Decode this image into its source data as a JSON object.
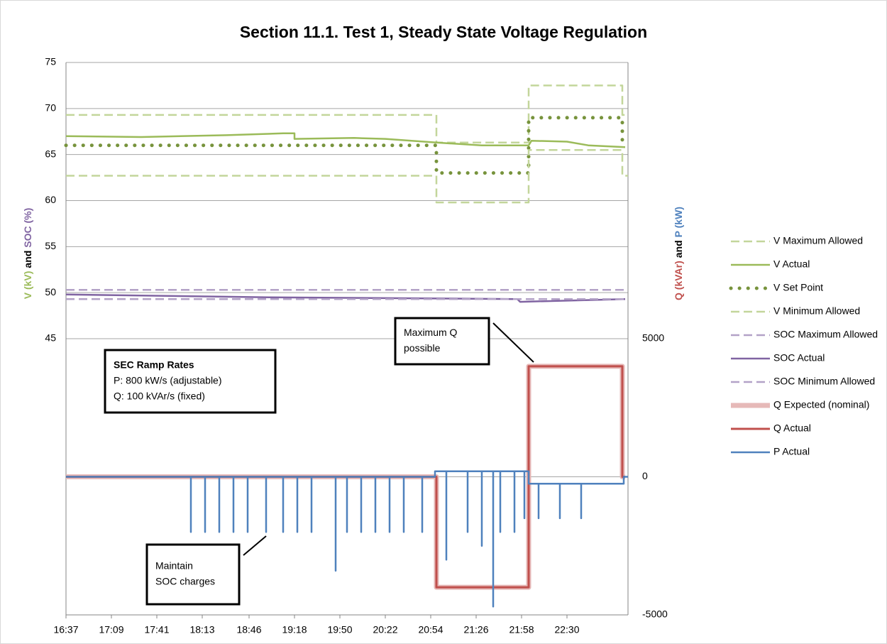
{
  "chart_data": {
    "type": "line",
    "title": "Section 11.1. Test 1, Steady State Voltage Regulation",
    "y_label_parts": [
      {
        "text": "V (kV)",
        "color": "#9bbb59"
      },
      {
        "text": "and",
        "color": "#000000"
      },
      {
        "text": "SOC (%)",
        "color": "#8064a2"
      }
    ],
    "y2_label_parts": [
      {
        "text": "Q (kVAr)",
        "color": "#c0504d"
      },
      {
        "text": "and",
        "color": "#000000"
      },
      {
        "text": "P (kW)",
        "color": "#4f81bd"
      }
    ],
    "xlim": [
      "16:37",
      "23:13"
    ],
    "xticks": [
      "16:37",
      "17:09",
      "17:41",
      "18:13",
      "18:46",
      "19:18",
      "19:50",
      "20:22",
      "20:54",
      "21:26",
      "21:58",
      "22:30"
    ],
    "ylim": [
      15,
      75
    ],
    "yticks": [
      45,
      50,
      55,
      60,
      65,
      70,
      75
    ],
    "y2lim": [
      -5000,
      15000
    ],
    "y2ticks": [
      -5000,
      0,
      5000
    ],
    "grid": true,
    "legend": "right",
    "series": [
      {
        "name": "V Maximum Allowed",
        "color": "#c3d69b",
        "style": "dash",
        "width": 2.5,
        "x": [
          "16:37",
          "20:58",
          "20:58",
          "22:03",
          "22:03",
          "23:09",
          "23:09",
          "23:13"
        ],
        "values": [
          69.3,
          69.3,
          66.3,
          66.3,
          72.5,
          72.5,
          69.3,
          69.3
        ]
      },
      {
        "name": "V Actual",
        "color": "#9bbb59",
        "style": "solid",
        "width": 2.5,
        "x": [
          "16:37",
          "17:30",
          "18:30",
          "19:10",
          "19:18",
          "19:18",
          "20:00",
          "20:22",
          "20:58",
          "21:30",
          "22:03",
          "22:05",
          "22:30",
          "22:45",
          "23:11"
        ],
        "values": [
          67.0,
          66.9,
          67.1,
          67.3,
          67.3,
          66.7,
          66.8,
          66.7,
          66.3,
          66.0,
          66.0,
          66.5,
          66.4,
          66.0,
          65.8
        ]
      },
      {
        "name": "V Set Point",
        "color": "#77933c",
        "style": "dot",
        "width": 5,
        "x": [
          "16:37",
          "20:58",
          "20:58",
          "22:03",
          "22:03",
          "23:09",
          "23:09",
          "23:11"
        ],
        "values": [
          66,
          66,
          63,
          63,
          69,
          69,
          66,
          66
        ]
      },
      {
        "name": "V Minimum Allowed",
        "color": "#c3d69b",
        "style": "dash",
        "width": 2.5,
        "x": [
          "16:37",
          "20:58",
          "20:58",
          "22:03",
          "22:03",
          "23:09",
          "23:09",
          "23:13"
        ],
        "values": [
          62.7,
          62.7,
          59.8,
          59.8,
          65.5,
          65.5,
          62.7,
          62.7
        ]
      },
      {
        "name": "SOC Maximum Allowed",
        "color": "#b3a2c7",
        "style": "dash",
        "width": 2.5,
        "x": [
          "16:37",
          "23:13"
        ],
        "values": [
          50.3,
          50.3
        ]
      },
      {
        "name": "SOC Actual",
        "color": "#8064a2",
        "style": "solid",
        "width": 2.5,
        "x": [
          "16:37",
          "19:00",
          "21:55",
          "21:57",
          "23:11"
        ],
        "values": [
          49.8,
          49.5,
          49.3,
          49.0,
          49.3
        ]
      },
      {
        "name": "SOC Minimum Allowed",
        "color": "#b3a2c7",
        "style": "dash",
        "width": 2.5,
        "x": [
          "16:37",
          "23:13"
        ],
        "values": [
          49.3,
          49.3
        ]
      },
      {
        "name": "Q Expected (nominal)",
        "color": "#e6b9b8",
        "style": "solid",
        "width": 7,
        "axis": "y2",
        "x": [
          "16:37",
          "20:58",
          "20:58",
          "22:03",
          "22:03",
          "23:09",
          "23:09",
          "23:11"
        ],
        "values": [
          0,
          0,
          -4000,
          -4000,
          4000,
          4000,
          0,
          0
        ]
      },
      {
        "name": "Q Actual",
        "color": "#c0504d",
        "style": "solid",
        "width": 3,
        "axis": "y2",
        "x": [
          "16:37",
          "20:58",
          "20:58",
          "22:03",
          "22:03",
          "23:09",
          "23:09",
          "23:11"
        ],
        "values": [
          0,
          0,
          -4000,
          -4000,
          4000,
          4000,
          0,
          0
        ]
      },
      {
        "name": "P Actual",
        "color": "#4f81bd",
        "style": "solid",
        "width": 2.5,
        "axis": "y2",
        "x": [
          "16:37",
          "18:05",
          "18:05",
          "18:05",
          "18:15",
          "18:15",
          "18:15",
          "18:25",
          "18:25",
          "18:25",
          "18:35",
          "18:35",
          "18:35",
          "18:45",
          "18:45",
          "18:45",
          "18:58",
          "18:58",
          "18:58",
          "19:10",
          "19:10",
          "19:10",
          "19:20",
          "19:20",
          "19:20",
          "19:30",
          "19:30",
          "19:30",
          "19:47",
          "19:47",
          "19:47",
          "19:55",
          "19:55",
          "19:55",
          "20:05",
          "20:05",
          "20:05",
          "20:15",
          "20:15",
          "20:15",
          "20:25",
          "20:25",
          "20:25",
          "20:35",
          "20:35",
          "20:35",
          "20:48",
          "20:48",
          "20:48",
          "20:57",
          "20:57",
          "21:05",
          "21:05",
          "21:05",
          "21:20",
          "21:20",
          "21:20",
          "21:30",
          "21:30",
          "21:30",
          "21:38",
          "21:38",
          "21:38",
          "21:43",
          "21:43",
          "21:43",
          "21:53",
          "21:53",
          "21:53",
          "22:00",
          "22:00",
          "22:00",
          "22:03",
          "22:03",
          "22:10",
          "22:10",
          "22:10",
          "22:25",
          "22:25",
          "22:25",
          "22:40",
          "22:40",
          "22:40",
          "23:10",
          "23:10",
          "23:13"
        ],
        "values": [
          0,
          0,
          -2000,
          0,
          0,
          -2000,
          0,
          0,
          -2000,
          0,
          0,
          -2000,
          0,
          0,
          -2000,
          0,
          0,
          -2000,
          0,
          0,
          -2000,
          0,
          0,
          -2000,
          0,
          0,
          -2000,
          0,
          0,
          -3400,
          0,
          0,
          -2000,
          0,
          0,
          -2000,
          0,
          0,
          -2000,
          0,
          0,
          -2000,
          0,
          0,
          -2000,
          0,
          0,
          -2000,
          0,
          0,
          200,
          200,
          -3000,
          200,
          200,
          -2000,
          200,
          200,
          -2500,
          200,
          200,
          -4700,
          200,
          200,
          -2000,
          200,
          200,
          -2000,
          200,
          200,
          -1500,
          200,
          200,
          -250,
          -250,
          -1500,
          -250,
          -250,
          -1500,
          -250,
          -250,
          -1500,
          -250,
          -250,
          0,
          0
        ]
      }
    ],
    "annotations": [
      {
        "lines": [
          "SEC Ramp Rates",
          "P: 800 kW/s (adjustable)",
          "Q: 100 kVAr/s (fixed)"
        ]
      },
      {
        "lines": [
          "Maximum Q",
          "possible"
        ]
      },
      {
        "lines": [
          "Maintain",
          "SOC charges"
        ]
      }
    ]
  }
}
